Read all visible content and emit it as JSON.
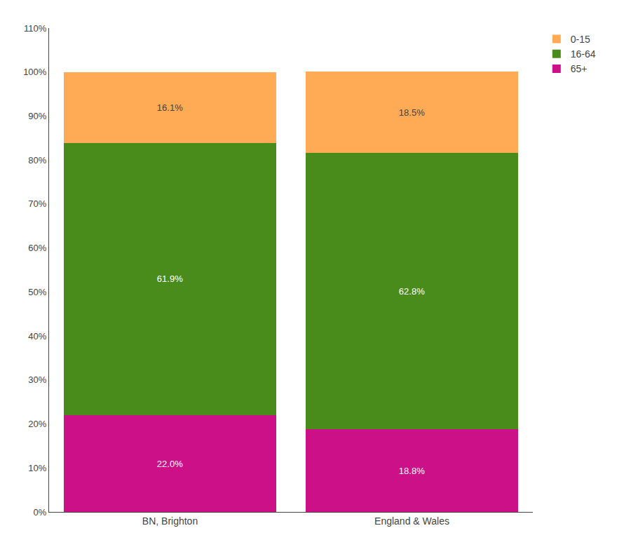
{
  "chart_data": {
    "type": "bar",
    "stacked": true,
    "categories": [
      "BN, Brighton",
      "England & Wales"
    ],
    "series": [
      {
        "name": "65+",
        "color": "#CC1188",
        "values": [
          22.0,
          18.8
        ],
        "value_labels": [
          "22.0%",
          "18.8%"
        ]
      },
      {
        "name": "16-64",
        "color": "#4A8C1C",
        "values": [
          61.9,
          62.8
        ],
        "value_labels": [
          "61.9%",
          "62.8%"
        ]
      },
      {
        "name": "0-15",
        "color": "#FFAA55",
        "values": [
          16.1,
          18.5
        ],
        "value_labels": [
          "16.1%",
          "18.5%"
        ]
      }
    ],
    "ylim": [
      0,
      110
    ],
    "yticks": [
      {
        "value": 0,
        "label": "0%"
      },
      {
        "value": 10,
        "label": "10%"
      },
      {
        "value": 20,
        "label": "20%"
      },
      {
        "value": 30,
        "label": "30%"
      },
      {
        "value": 40,
        "label": "40%"
      },
      {
        "value": 50,
        "label": "50%"
      },
      {
        "value": 60,
        "label": "60%"
      },
      {
        "value": 70,
        "label": "70%"
      },
      {
        "value": 80,
        "label": "80%"
      },
      {
        "value": 90,
        "label": "90%"
      },
      {
        "value": 100,
        "label": "100%"
      },
      {
        "value": 110,
        "label": "110%"
      }
    ],
    "grid": false,
    "legend": "right",
    "data_labels": true
  }
}
